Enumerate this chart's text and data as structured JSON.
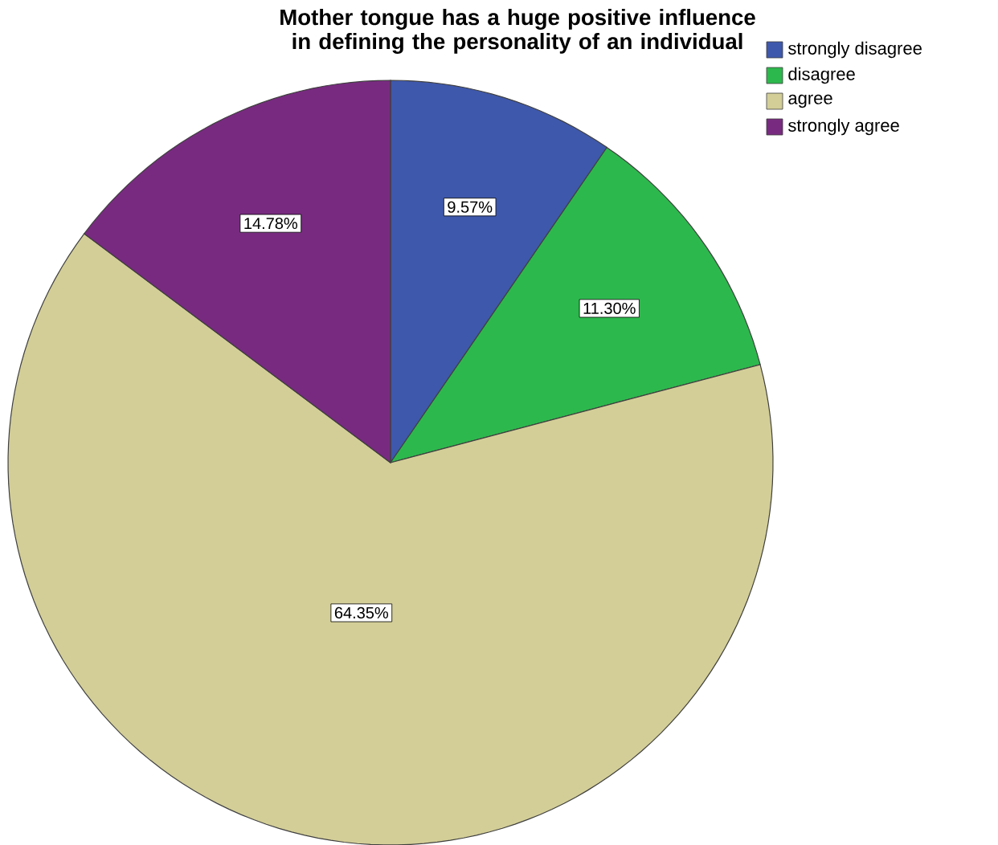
{
  "chart_data": {
    "type": "pie",
    "title": "Mother tongue has a huge positive influence in defining the personality of an individual",
    "categories": [
      "strongly disagree",
      "disagree",
      "agree",
      "strongly agree"
    ],
    "values": [
      9.57,
      11.3,
      64.35,
      14.78
    ],
    "value_labels": [
      "9.57%",
      "11.30%",
      "64.35%",
      "14.78%"
    ],
    "colors": [
      "#3e58ac",
      "#2db84d",
      "#d3ce97",
      "#782a80"
    ],
    "legend": "top right"
  }
}
